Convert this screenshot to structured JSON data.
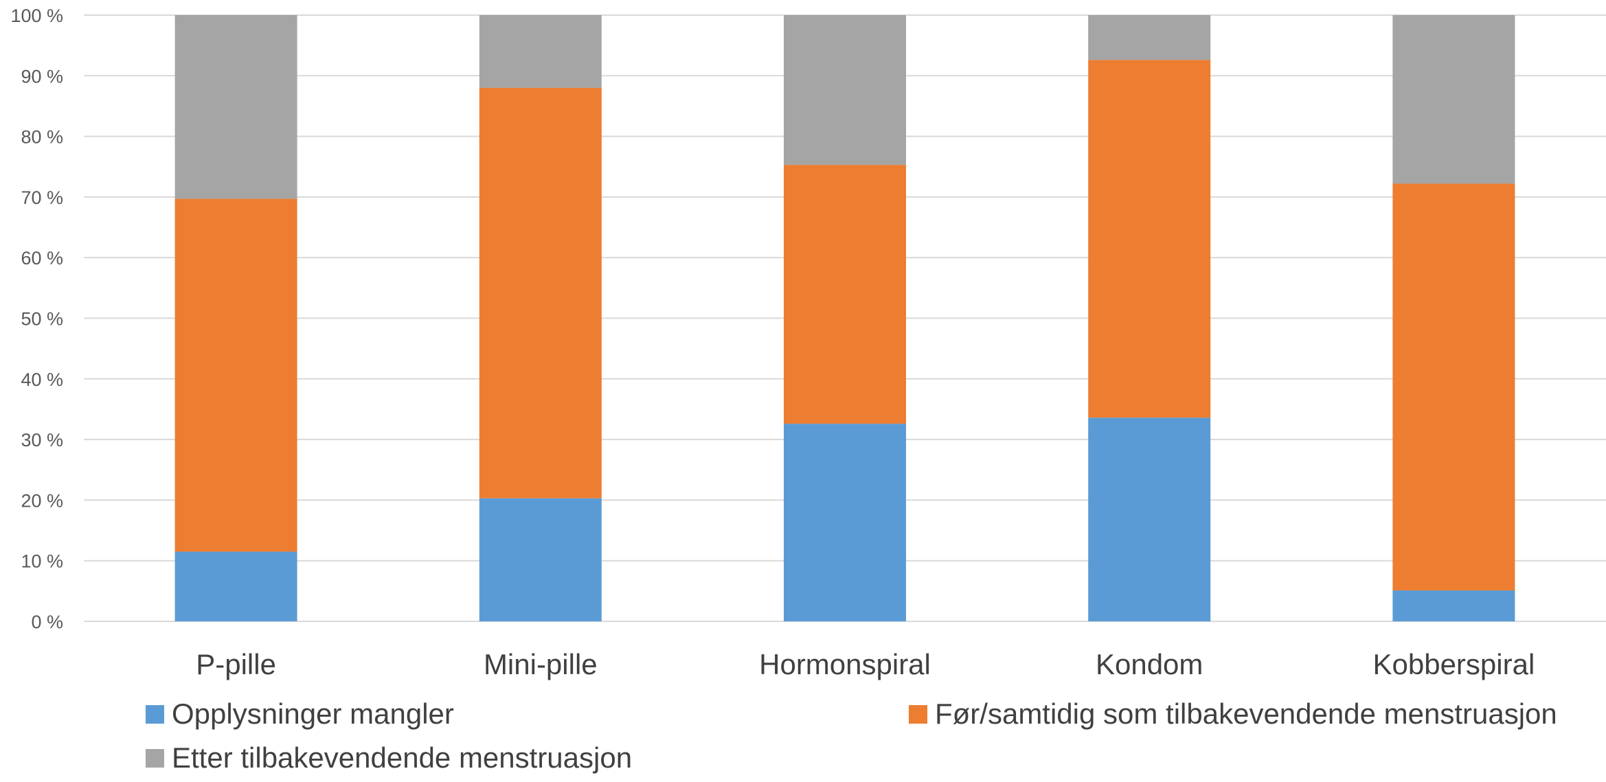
{
  "chart_data": {
    "type": "bar",
    "stacked": true,
    "categories": [
      "P-pille",
      "Mini-pille",
      "Hormonspiral",
      "Kondom",
      "Kobberspiral"
    ],
    "series": [
      {
        "name": "Opplysninger mangler",
        "color": "#5B9BD5",
        "values": [
          11.5,
          20.3,
          32.6,
          33.6,
          5.1
        ]
      },
      {
        "name": "Før/samtidig som tilbakevendende menstruasjon",
        "color": "#ED7D31",
        "values": [
          58.2,
          67.7,
          42.7,
          59.0,
          67.1
        ]
      },
      {
        "name": "Etter tilbakevendende menstruasjon",
        "color": "#A5A5A5",
        "values": [
          30.3,
          12.0,
          24.7,
          7.4,
          27.8
        ]
      }
    ],
    "yticks": [
      "0 %",
      "10 %",
      "20 %",
      "30 %",
      "40 %",
      "50 %",
      "60 %",
      "70 %",
      "80 %",
      "90 %",
      "100 %"
    ],
    "ylim": [
      0,
      100
    ],
    "grid": true,
    "legend_position": "bottom"
  }
}
